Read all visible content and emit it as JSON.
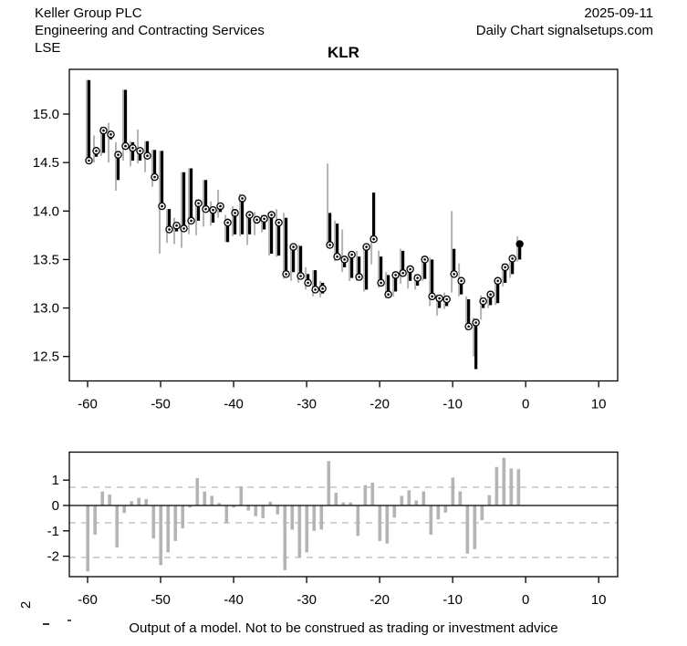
{
  "header": {
    "company": "Keller Group PLC",
    "sector": "Engineering and Contracting Services",
    "exchange": "LSE",
    "date": "2025-09-11",
    "chart_type": "Daily Chart signalsetups.com"
  },
  "side_label": "2",
  "footer_text": "Output of a model. Not to be construed as trading or investment advice",
  "chart_data": [
    {
      "type": "hlc-bars",
      "title": "KLR",
      "xlabel": "",
      "ylabel": "",
      "xlim": [
        -62.5,
        12.6
      ],
      "ylim": [
        12.248,
        15.461
      ],
      "x_ticks": [
        -60,
        -50,
        -40,
        -30,
        -20,
        -10,
        0,
        10
      ],
      "y_ticks": [
        12.5,
        13.0,
        13.5,
        14.0,
        14.5,
        15.0
      ],
      "grid": false,
      "legend": "none",
      "colors": {
        "range_line": "#b4b4b4",
        "bar": "#000000",
        "marker_fill": "#ffffff"
      },
      "bars_note": "each bar = [x, rangeHigh, rangeLow, barHigh, barLow, close, filledMarker]",
      "bars": [
        [
          -60,
          15.35,
          14.52,
          15.35,
          14.52,
          14.52,
          0
        ],
        [
          -59,
          14.78,
          14.5,
          14.66,
          14.56,
          14.62,
          0
        ],
        [
          -58,
          14.87,
          14.57,
          14.84,
          14.6,
          14.83,
          0
        ],
        [
          -57,
          14.91,
          14.5,
          14.81,
          14.74,
          14.79,
          0
        ],
        [
          -56,
          14.71,
          14.21,
          14.59,
          14.32,
          14.58,
          0
        ],
        [
          -55,
          15.25,
          14.52,
          15.25,
          14.66,
          14.67,
          0
        ],
        [
          -54,
          14.72,
          14.46,
          14.71,
          14.52,
          14.65,
          0
        ],
        [
          -53,
          14.84,
          14.49,
          14.63,
          14.52,
          14.62,
          0
        ],
        [
          -52,
          14.72,
          14.4,
          14.72,
          14.55,
          14.57,
          0
        ],
        [
          -51,
          14.63,
          14.25,
          14.63,
          14.36,
          14.35,
          0
        ],
        [
          -50,
          14.62,
          13.56,
          14.62,
          14.06,
          14.05,
          0
        ],
        [
          -49,
          14.02,
          13.67,
          14.02,
          13.81,
          13.81,
          0
        ],
        [
          -48,
          13.93,
          13.66,
          13.88,
          13.79,
          13.85,
          0
        ],
        [
          -47,
          14.4,
          13.62,
          14.4,
          13.81,
          13.82,
          0
        ],
        [
          -46,
          14.44,
          13.76,
          14.44,
          13.9,
          13.9,
          0
        ],
        [
          -45,
          14.12,
          13.75,
          14.1,
          13.9,
          14.08,
          0
        ],
        [
          -44,
          14.32,
          13.84,
          14.32,
          14.01,
          14.02,
          0
        ],
        [
          -43,
          14.1,
          13.85,
          14.02,
          13.88,
          14.01,
          0
        ],
        [
          -42,
          14.22,
          13.93,
          14.07,
          13.99,
          14.05,
          0
        ],
        [
          -41,
          13.96,
          13.68,
          13.92,
          13.68,
          13.88,
          0
        ],
        [
          -40,
          14.05,
          13.74,
          14.02,
          13.76,
          13.98,
          0
        ],
        [
          -39,
          14.18,
          13.74,
          14.15,
          13.76,
          14.13,
          0
        ],
        [
          -38,
          13.98,
          13.65,
          13.97,
          13.76,
          13.96,
          0
        ],
        [
          -37,
          13.99,
          13.75,
          13.93,
          13.87,
          13.91,
          0
        ],
        [
          -36,
          13.96,
          13.78,
          13.93,
          13.81,
          13.92,
          0
        ],
        [
          -35,
          13.98,
          13.54,
          13.97,
          13.56,
          13.96,
          0
        ],
        [
          -34,
          14.02,
          13.53,
          13.9,
          13.54,
          13.88,
          0
        ],
        [
          -33,
          13.98,
          13.3,
          13.93,
          13.34,
          13.35,
          0
        ],
        [
          -32,
          13.65,
          13.28,
          13.64,
          13.37,
          13.63,
          0
        ],
        [
          -31,
          13.65,
          13.26,
          13.64,
          13.31,
          13.33,
          0
        ],
        [
          -30,
          13.42,
          13.19,
          13.35,
          13.23,
          13.26,
          0
        ],
        [
          -29,
          13.39,
          13.12,
          13.39,
          13.17,
          13.19,
          0
        ],
        [
          -28,
          13.28,
          13.11,
          13.26,
          13.15,
          13.2,
          0
        ],
        [
          -27,
          14.49,
          13.62,
          13.98,
          13.64,
          13.65,
          0
        ],
        [
          -26,
          13.9,
          13.48,
          13.87,
          13.51,
          13.53,
          0
        ],
        [
          -25,
          13.81,
          13.37,
          13.53,
          13.42,
          13.5,
          0
        ],
        [
          -24,
          13.58,
          13.28,
          13.56,
          13.31,
          13.55,
          0
        ],
        [
          -23,
          13.59,
          13.28,
          13.53,
          13.3,
          13.32,
          0
        ],
        [
          -22,
          13.64,
          13.17,
          13.64,
          13.19,
          13.63,
          0
        ],
        [
          -21,
          13.75,
          13.45,
          14.19,
          13.7,
          13.71,
          0
        ],
        [
          -20,
          13.59,
          13.21,
          13.53,
          13.25,
          13.26,
          0
        ],
        [
          -19,
          13.37,
          13.1,
          13.34,
          13.13,
          13.14,
          0
        ],
        [
          -18,
          13.37,
          13.12,
          13.34,
          13.17,
          13.34,
          0
        ],
        [
          -17,
          13.61,
          13.25,
          13.59,
          13.35,
          13.36,
          0
        ],
        [
          -16,
          13.43,
          13.2,
          13.41,
          13.28,
          13.4,
          0
        ],
        [
          -15,
          13.35,
          13.19,
          13.33,
          13.23,
          13.31,
          0
        ],
        [
          -14,
          13.53,
          13.28,
          13.51,
          13.3,
          13.5,
          0
        ],
        [
          -13,
          13.52,
          13.02,
          13.5,
          13.12,
          13.12,
          0
        ],
        [
          -12,
          13.14,
          12.92,
          13.12,
          13.0,
          13.1,
          0
        ],
        [
          -11,
          13.16,
          12.99,
          13.12,
          13.02,
          13.09,
          0
        ],
        [
          -10,
          14.0,
          13.16,
          13.61,
          13.36,
          13.35,
          0
        ],
        [
          -9,
          13.46,
          13.12,
          13.28,
          13.14,
          13.28,
          0
        ],
        [
          -8,
          13.12,
          12.77,
          13.09,
          12.8,
          12.81,
          0
        ],
        [
          -7,
          12.9,
          12.5,
          12.85,
          12.37,
          12.85,
          0
        ],
        [
          -6,
          13.13,
          12.88,
          13.08,
          13.0,
          13.07,
          0
        ],
        [
          -5,
          13.16,
          13.0,
          13.13,
          13.03,
          13.14,
          0
        ],
        [
          -4,
          13.3,
          13.03,
          13.28,
          13.05,
          13.28,
          0
        ],
        [
          -3,
          13.46,
          13.22,
          13.42,
          13.26,
          13.42,
          0
        ],
        [
          -2,
          13.54,
          13.31,
          13.51,
          13.35,
          13.51,
          0
        ],
        [
          -1,
          13.74,
          13.48,
          13.64,
          13.5,
          13.66,
          1
        ]
      ]
    },
    {
      "type": "bar",
      "title": "",
      "xlabel": "",
      "ylabel": "",
      "xlim": [
        -62.5,
        12.6
      ],
      "ylim": [
        -2.806,
        2.104
      ],
      "x_ticks": [
        -60,
        -50,
        -40,
        -30,
        -20,
        -10,
        0,
        10
      ],
      "y_ticks": [
        1,
        0,
        -1,
        -2
      ],
      "dashed_levels": [
        0.72,
        -0.68,
        -2.05
      ],
      "zero_line": true,
      "bar_color": "#b4b4b4",
      "dash_color": "#c9c9c9",
      "x": [
        -60,
        -59,
        -58,
        -57,
        -56,
        -55,
        -54,
        -53,
        -52,
        -51,
        -50,
        -49,
        -48,
        -47,
        -46,
        -45,
        -44,
        -43,
        -42,
        -41,
        -40,
        -39,
        -38,
        -37,
        -36,
        -35,
        -34,
        -33,
        -32,
        -31,
        -30,
        -29,
        -28,
        -27,
        -26,
        -25,
        -24,
        -23,
        -22,
        -21,
        -20,
        -19,
        -18,
        -17,
        -16,
        -15,
        -14,
        -13,
        -12,
        -11,
        -10,
        -9,
        -8,
        -7,
        -6,
        -5,
        -4,
        -3,
        -2,
        -1
      ],
      "values": [
        -2.6,
        -1.15,
        0.55,
        0.43,
        -1.65,
        -0.3,
        0.17,
        0.3,
        0.25,
        -1.3,
        -2.35,
        -1.85,
        -1.4,
        -0.9,
        -0.08,
        1.08,
        0.55,
        0.38,
        0.1,
        -0.7,
        -0.08,
        0.75,
        -0.2,
        -0.42,
        -0.5,
        0.15,
        -0.35,
        -2.55,
        -0.95,
        -2.05,
        -1.85,
        -1.0,
        -0.95,
        1.75,
        0.5,
        0.12,
        0.12,
        -1.2,
        0.8,
        0.9,
        -1.4,
        -1.5,
        -0.48,
        0.38,
        0.6,
        0.2,
        0.56,
        -1.15,
        -0.55,
        -0.28,
        1.1,
        0.56,
        -1.9,
        -1.72,
        -0.58,
        0.41,
        1.52,
        1.88,
        1.46,
        1.43
      ]
    }
  ]
}
